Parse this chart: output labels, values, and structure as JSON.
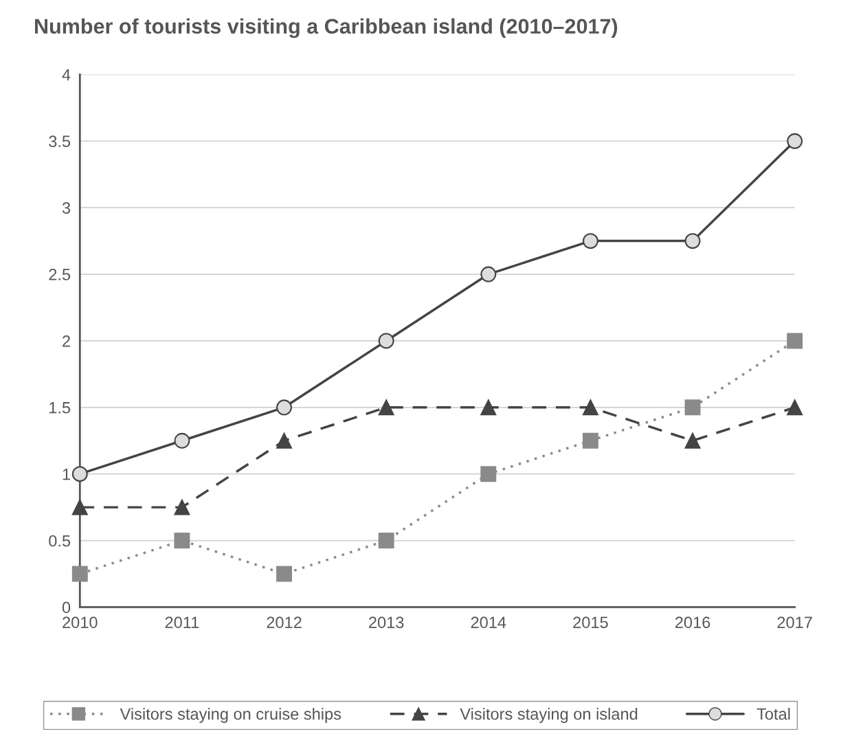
{
  "chart_data": {
    "type": "line",
    "title": "Number of tourists visiting a Caribbean island (2010–2017)",
    "categories": [
      "2010",
      "2011",
      "2012",
      "2013",
      "2014",
      "2015",
      "2016",
      "2017"
    ],
    "series": [
      {
        "name": "Visitors staying on cruise ships",
        "color": "#8a8a8a",
        "marker": "square",
        "line_style": "dotted",
        "values": [
          0.25,
          0.5,
          0.25,
          0.5,
          1,
          1.25,
          1.5,
          2
        ]
      },
      {
        "name": "Visitors staying on island",
        "color": "#444444",
        "marker": "triangle",
        "line_style": "dashed",
        "values": [
          0.75,
          0.75,
          1.25,
          1.5,
          1.5,
          1.5,
          1.25,
          1.5
        ]
      },
      {
        "name": "Total",
        "color": "#444444",
        "marker": "circle",
        "line_style": "solid",
        "values": [
          1,
          1.25,
          1.5,
          2,
          2.5,
          2.75,
          2.75,
          3.5
        ]
      }
    ],
    "ylim": [
      0,
      4
    ],
    "yticks": [
      0,
      0.5,
      1,
      1.5,
      2,
      2.5,
      3,
      3.5,
      4
    ],
    "grid": "y",
    "legend": "bottom"
  }
}
